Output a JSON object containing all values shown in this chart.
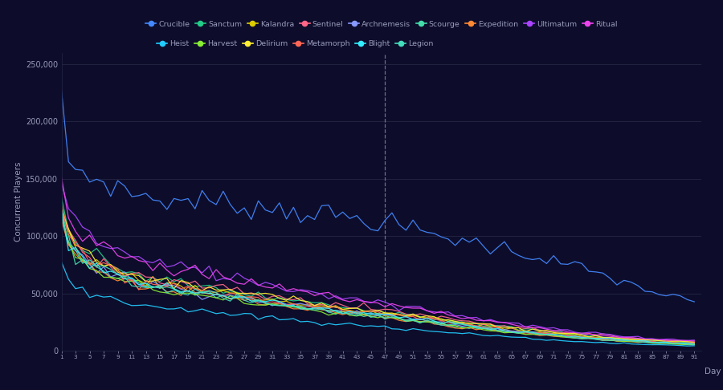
{
  "background_color": "#0d0d2b",
  "grid_color": "#252545",
  "text_color": "#9999bb",
  "dashed_line_x": 47,
  "ylabel": "Concurrent Players",
  "xlabel": "Day",
  "ylim": [
    0,
    260000
  ],
  "yticks": [
    0,
    50000,
    100000,
    150000,
    200000,
    250000
  ],
  "xticks": [
    1,
    3,
    5,
    7,
    9,
    11,
    13,
    15,
    17,
    19,
    21,
    23,
    25,
    27,
    29,
    31,
    33,
    35,
    37,
    39,
    41,
    43,
    45,
    47,
    49,
    51,
    53,
    55,
    57,
    59,
    61,
    63,
    65,
    67,
    69,
    71,
    73,
    75,
    77,
    79,
    81,
    83,
    85,
    87,
    89,
    91
  ],
  "series": [
    {
      "name": "Crucible",
      "color": "#4488ff",
      "keydays": [
        1,
        2,
        3,
        5,
        8,
        11,
        14,
        17,
        20,
        25,
        30,
        35,
        40,
        47,
        55,
        65,
        75,
        85,
        91
      ],
      "keyvals": [
        213000,
        168000,
        158000,
        152000,
        145000,
        138000,
        133000,
        130000,
        132000,
        128000,
        125000,
        122000,
        118000,
        112000,
        100000,
        88000,
        72000,
        52000,
        42000
      ]
    },
    {
      "name": "Sanctum",
      "color": "#22cc88",
      "keydays": [
        1,
        2,
        3,
        5,
        8,
        11,
        14,
        17,
        20,
        25,
        30,
        35,
        40,
        47,
        55,
        65,
        75,
        85,
        91
      ],
      "keyvals": [
        130000,
        105000,
        95000,
        85000,
        76000,
        68000,
        63000,
        60000,
        57000,
        52000,
        47000,
        43000,
        39000,
        35000,
        28000,
        20000,
        14000,
        9000,
        7000
      ]
    },
    {
      "name": "Kalandra",
      "color": "#ddcc00",
      "keydays": [
        1,
        2,
        3,
        5,
        8,
        11,
        14,
        17,
        20,
        25,
        30,
        35,
        40,
        47,
        55,
        65,
        75,
        85,
        91
      ],
      "keyvals": [
        125000,
        100000,
        90000,
        80000,
        72000,
        65000,
        60000,
        57000,
        55000,
        50000,
        45000,
        41000,
        37000,
        33000,
        27000,
        19000,
        13000,
        8000,
        6500
      ]
    },
    {
      "name": "Sentinel",
      "color": "#ff6688",
      "keydays": [
        1,
        2,
        3,
        5,
        8,
        11,
        14,
        17,
        20,
        25,
        30,
        35,
        40,
        47,
        55,
        65,
        75,
        85,
        91
      ],
      "keyvals": [
        128000,
        103000,
        93000,
        83000,
        75000,
        68000,
        63000,
        60000,
        58000,
        53000,
        48000,
        44000,
        40000,
        36000,
        29000,
        21000,
        15000,
        10000,
        8000
      ]
    },
    {
      "name": "Archnemesis",
      "color": "#8899ff",
      "keydays": [
        1,
        2,
        3,
        5,
        8,
        11,
        14,
        17,
        20,
        25,
        30,
        35,
        40,
        47,
        55,
        65,
        75,
        85,
        91
      ],
      "keyvals": [
        120000,
        96000,
        87000,
        77000,
        69000,
        62000,
        58000,
        55000,
        52000,
        48000,
        43000,
        39000,
        35000,
        31000,
        25000,
        18000,
        12000,
        8000,
        6500
      ]
    },
    {
      "name": "Scourge",
      "color": "#44ddaa",
      "keydays": [
        1,
        2,
        3,
        5,
        8,
        11,
        14,
        17,
        20,
        25,
        30,
        35,
        40,
        47,
        55,
        65,
        75,
        85,
        91
      ],
      "keyvals": [
        118000,
        94000,
        85000,
        76000,
        68000,
        61000,
        56000,
        54000,
        51000,
        47000,
        42000,
        38000,
        34000,
        30000,
        24000,
        17000,
        11000,
        7500,
        6000
      ]
    },
    {
      "name": "Expedition",
      "color": "#ff8833",
      "keydays": [
        1,
        2,
        3,
        5,
        8,
        11,
        14,
        17,
        20,
        25,
        30,
        35,
        40,
        47,
        55,
        65,
        75,
        85,
        91
      ],
      "keyvals": [
        115000,
        92000,
        83000,
        74000,
        66000,
        60000,
        55000,
        52000,
        50000,
        46000,
        41000,
        37000,
        33000,
        29000,
        23000,
        16000,
        11000,
        7000,
        5500
      ]
    },
    {
      "name": "Ultimatum",
      "color": "#aa44ff",
      "keydays": [
        1,
        2,
        3,
        5,
        8,
        11,
        14,
        17,
        20,
        25,
        30,
        35,
        40,
        47,
        55,
        65,
        75,
        85,
        91
      ],
      "keyvals": [
        155000,
        125000,
        113000,
        101000,
        91000,
        82000,
        77000,
        74000,
        71000,
        65000,
        59000,
        53000,
        48000,
        42000,
        34000,
        24000,
        16000,
        11000,
        9000
      ]
    },
    {
      "name": "Ritual",
      "color": "#ee44ee",
      "keydays": [
        1,
        2,
        3,
        5,
        8,
        11,
        14,
        17,
        20,
        25,
        30,
        35,
        40,
        47,
        55,
        65,
        75,
        85,
        91
      ],
      "keyvals": [
        152000,
        122000,
        110000,
        98000,
        88000,
        80000,
        75000,
        72000,
        69000,
        63000,
        57000,
        52000,
        47000,
        41000,
        33000,
        23000,
        15000,
        10000,
        8500
      ]
    },
    {
      "name": "Heist",
      "color": "#22ccff",
      "keydays": [
        1,
        2,
        3,
        5,
        8,
        11,
        14,
        17,
        20,
        25,
        30,
        35,
        40,
        47,
        55,
        65,
        75,
        85,
        91
      ],
      "keyvals": [
        78000,
        63000,
        57000,
        51000,
        46000,
        42000,
        39000,
        37000,
        35000,
        32000,
        29000,
        26000,
        23000,
        21000,
        17000,
        12000,
        8000,
        5500,
        4500
      ]
    },
    {
      "name": "Harvest",
      "color": "#88ee33",
      "keydays": [
        1,
        2,
        3,
        5,
        8,
        11,
        14,
        17,
        20,
        25,
        30,
        35,
        40,
        47,
        55,
        65,
        75,
        85,
        91
      ],
      "keyvals": [
        113000,
        91000,
        82000,
        73000,
        65000,
        59000,
        54000,
        51000,
        49000,
        45000,
        40000,
        36000,
        33000,
        29000,
        23000,
        16000,
        11000,
        7000,
        5500
      ]
    },
    {
      "name": "Delirium",
      "color": "#ffee33",
      "keydays": [
        1,
        2,
        3,
        5,
        8,
        11,
        14,
        17,
        20,
        25,
        30,
        35,
        40,
        47,
        55,
        65,
        75,
        85,
        91
      ],
      "keyvals": [
        127000,
        102000,
        92000,
        82000,
        74000,
        67000,
        62000,
        59000,
        57000,
        52000,
        47000,
        43000,
        39000,
        35000,
        28000,
        20000,
        14000,
        9500,
        7500
      ]
    },
    {
      "name": "Metamorph",
      "color": "#ff6655",
      "keydays": [
        1,
        2,
        3,
        5,
        8,
        11,
        14,
        17,
        20,
        25,
        30,
        35,
        40,
        47,
        55,
        65,
        75,
        85,
        91
      ],
      "keyvals": [
        122000,
        98000,
        88000,
        78000,
        70000,
        63000,
        58000,
        56000,
        53000,
        49000,
        44000,
        40000,
        36000,
        32000,
        26000,
        18000,
        12000,
        8000,
        6500
      ]
    },
    {
      "name": "Blight",
      "color": "#33eeff",
      "keydays": [
        1,
        2,
        3,
        5,
        8,
        11,
        14,
        17,
        20,
        25,
        30,
        35,
        40,
        47,
        55,
        65,
        75,
        85,
        91
      ],
      "keyvals": [
        120000,
        96000,
        86000,
        77000,
        69000,
        62000,
        57000,
        54000,
        52000,
        47000,
        43000,
        39000,
        35000,
        31000,
        25000,
        17000,
        12000,
        8000,
        6500
      ]
    },
    {
      "name": "Legion",
      "color": "#44ddbb",
      "keydays": [
        1,
        2,
        3,
        5,
        8,
        11,
        14,
        17,
        20,
        25,
        30,
        35,
        40,
        47,
        55,
        65,
        75,
        85,
        91
      ],
      "keyvals": [
        119000,
        95000,
        85000,
        76000,
        68000,
        61000,
        56000,
        54000,
        51000,
        47000,
        42000,
        38000,
        34000,
        30000,
        24000,
        17000,
        11000,
        7500,
        6000
      ]
    }
  ]
}
